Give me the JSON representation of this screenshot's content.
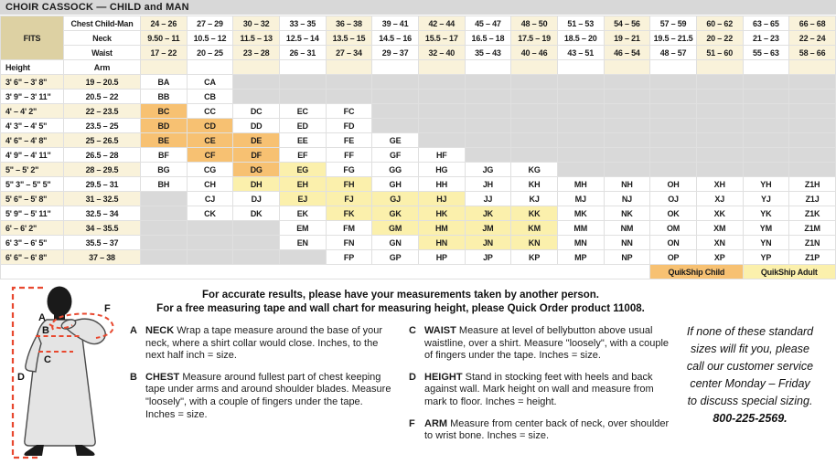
{
  "title": "CHOIR CASSOCK — CHILD and MAN",
  "fits": {
    "label": "FITS",
    "chest": {
      "label": "Chest Child-Man",
      "values": [
        "24 – 26",
        "27 – 29",
        "30 – 32",
        "33 – 35",
        "36 – 38",
        "39 – 41",
        "42 – 44",
        "45 – 47",
        "48 – 50",
        "51 – 53",
        "54 – 56",
        "57 – 59",
        "60 – 62",
        "63 – 65",
        "66 – 68"
      ]
    },
    "neck": {
      "label": "Neck",
      "values": [
        "9.50 – 11",
        "10.5 – 12",
        "11.5 – 13",
        "12.5 – 14",
        "13.5 – 15",
        "14.5 – 16",
        "15.5 – 17",
        "16.5 – 18",
        "17.5 – 19",
        "18.5 – 20",
        "19 – 21",
        "19.5 – 21.5",
        "20 – 22",
        "21 – 23",
        "22 – 24"
      ]
    },
    "waist": {
      "label": "Waist",
      "values": [
        "17 – 22",
        "20 – 25",
        "23 – 28",
        "26 – 31",
        "27 – 34",
        "29 – 37",
        "32 – 40",
        "35 – 43",
        "40 – 46",
        "43 – 51",
        "46 – 54",
        "48 – 57",
        "51 – 60",
        "55 – 63",
        "58 – 66"
      ]
    }
  },
  "grid": {
    "height_label": "Height",
    "arm_label": "Arm",
    "rows": [
      {
        "height": "3' 6\" – 3' 8\"",
        "arm": "19 – 20.5",
        "cells": [
          "BA",
          "CA",
          null,
          null,
          null,
          null,
          null,
          null,
          null,
          null,
          null,
          null,
          null,
          null,
          null
        ]
      },
      {
        "height": "3' 9\" – 3' 11\"",
        "arm": "20.5 – 22",
        "cells": [
          "BB",
          "CB",
          null,
          null,
          null,
          null,
          null,
          null,
          null,
          null,
          null,
          null,
          null,
          null,
          null
        ]
      },
      {
        "height": "4' – 4' 2\"",
        "arm": "22 – 23.5",
        "cells": [
          "BC",
          "CC",
          "DC",
          "EC",
          "FC",
          null,
          null,
          null,
          null,
          null,
          null,
          null,
          null,
          null,
          null
        ]
      },
      {
        "height": "4' 3\" – 4' 5\"",
        "arm": "23.5 – 25",
        "cells": [
          "BD",
          "CD",
          "DD",
          "ED",
          "FD",
          null,
          null,
          null,
          null,
          null,
          null,
          null,
          null,
          null,
          null
        ]
      },
      {
        "height": "4' 6\" – 4' 8\"",
        "arm": "25 – 26.5",
        "cells": [
          "BE",
          "CE",
          "DE",
          "EE",
          "FE",
          "GE",
          null,
          null,
          null,
          null,
          null,
          null,
          null,
          null,
          null
        ]
      },
      {
        "height": "4' 9\" – 4' 11\"",
        "arm": "26.5 – 28",
        "cells": [
          "BF",
          "CF",
          "DF",
          "EF",
          "FF",
          "GF",
          "HF",
          null,
          null,
          null,
          null,
          null,
          null,
          null,
          null
        ]
      },
      {
        "height": "5\" – 5' 2\"",
        "arm": "28 – 29.5",
        "cells": [
          "BG",
          "CG",
          "DG",
          "EG",
          "FG",
          "GG",
          "HG",
          "JG",
          "KG",
          null,
          null,
          null,
          null,
          null,
          null
        ]
      },
      {
        "height": "5\" 3\" – 5\" 5\"",
        "arm": "29.5 – 31",
        "cells": [
          "BH",
          "CH",
          "DH",
          "EH",
          "FH",
          "GH",
          "HH",
          "JH",
          "KH",
          "MH",
          "NH",
          "OH",
          "XH",
          "YH",
          "Z1H"
        ]
      },
      {
        "height": "5' 6\" – 5' 8\"",
        "arm": "31 – 32.5",
        "cells": [
          null,
          "CJ",
          "DJ",
          "EJ",
          "FJ",
          "GJ",
          "HJ",
          "JJ",
          "KJ",
          "MJ",
          "NJ",
          "OJ",
          "XJ",
          "YJ",
          "Z1J"
        ]
      },
      {
        "height": "5' 9\" – 5' 11\"",
        "arm": "32.5 – 34",
        "cells": [
          null,
          "CK",
          "DK",
          "EK",
          "FK",
          "GK",
          "HK",
          "JK",
          "KK",
          "MK",
          "NK",
          "OK",
          "XK",
          "YK",
          "Z1K"
        ]
      },
      {
        "height": "6' – 6' 2\"",
        "arm": "34 – 35.5",
        "cells": [
          null,
          null,
          null,
          "EM",
          "FM",
          "GM",
          "HM",
          "JM",
          "KM",
          "MM",
          "NM",
          "OM",
          "XM",
          "YM",
          "Z1M"
        ]
      },
      {
        "height": "6' 3\" – 6' 5\"",
        "arm": "35.5 – 37",
        "cells": [
          null,
          null,
          null,
          "EN",
          "FN",
          "GN",
          "HN",
          "JN",
          "KN",
          "MN",
          "NN",
          "ON",
          "XN",
          "YN",
          "Z1N"
        ]
      },
      {
        "height": "6' 6\" – 6' 8\"",
        "arm": "37 – 38",
        "cells": [
          null,
          null,
          null,
          null,
          "FP",
          "GP",
          "HP",
          "JP",
          "KP",
          "MP",
          "NP",
          "OP",
          "XP",
          "YP",
          "Z1P"
        ]
      }
    ],
    "quikship_child_codes": [
      "BC",
      "BD",
      "CD",
      "BE",
      "CE",
      "DE",
      "CF",
      "DF",
      "DG"
    ],
    "quikship_adult_codes": [
      "EG",
      "DH",
      "EH",
      "FH",
      "EJ",
      "FJ",
      "GJ",
      "HJ",
      "FK",
      "GK",
      "HK",
      "JK",
      "KK",
      "GM",
      "HM",
      "JM",
      "KM",
      "HN",
      "JN",
      "KN"
    ]
  },
  "quikship": {
    "child_label": "QuikShip Child",
    "adult_label": "QuikShip Adult"
  },
  "notes": {
    "center_line1": "For accurate results, please have your measurements taken by another person.",
    "center_line2": "For a free measuring tape and wall chart for measuring height, please Quick Order product 11008.",
    "items": [
      {
        "letter": "A",
        "term": "NECK",
        "text": "Wrap a tape measure around the base of your neck, where a shirt collar would close. Inches, to the next half inch = size."
      },
      {
        "letter": "B",
        "term": "CHEST",
        "text": "Measure around fullest part of chest keeping tape under arms and around shoulder blades. Measure \"loosely\", with a couple of fingers under the tape. Inches = size."
      },
      {
        "letter": "C",
        "term": "WAIST",
        "text": "Measure at level of bellybutton above usual waistline, over a shirt. Measure \"loosely\", with a couple of fingers under the tape. Inches = size."
      },
      {
        "letter": "D",
        "term": "HEIGHT",
        "text": "Stand in stocking feet with heels and back against wall. Mark height on wall and measure from mark to floor. Inches = height."
      },
      {
        "letter": "F",
        "term": "ARM",
        "text": "Measure from center back of neck, over shoulder to wrist bone. Inches = size."
      }
    ],
    "side_note_lines": [
      "If none of these standard",
      "sizes will fit you, please",
      "call our customer service",
      "center Monday – Friday",
      "to discuss special sizing."
    ],
    "side_note_phone": "800-225-2569."
  },
  "figure": {
    "labels": [
      "A",
      "B",
      "C",
      "D",
      "F"
    ]
  },
  "colors": {
    "quikship_child": "#f7c172",
    "quikship_adult": "#fbf0ac",
    "cream_stripe": "#f9f2da",
    "empty_cell": "#d9d9d9",
    "fits_bg": "#ddd1a3",
    "title_bg": "#d8d8d8",
    "measure_red": "#e8482f"
  }
}
